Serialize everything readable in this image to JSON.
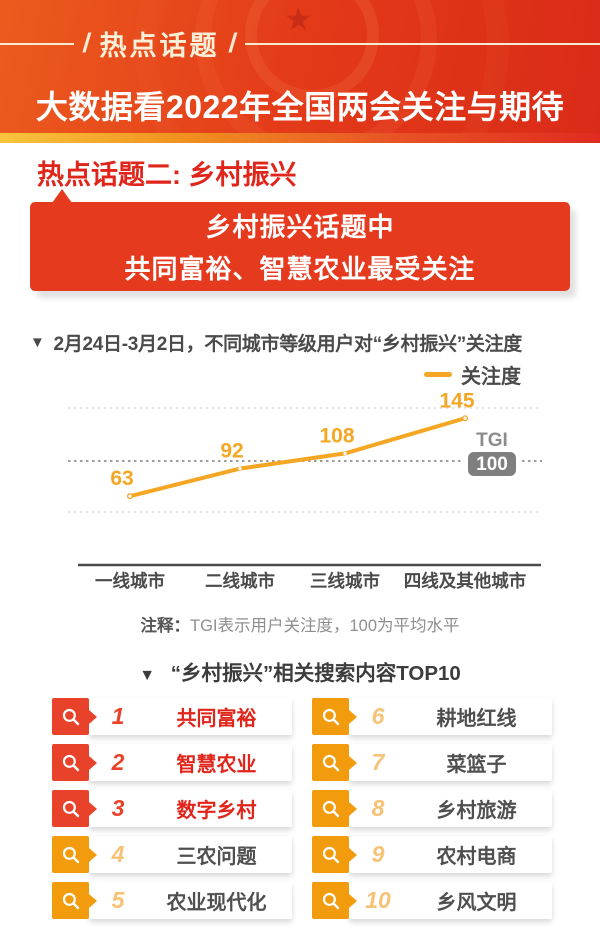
{
  "header": {
    "badge_label": "热点话题",
    "title": "大数据看2022年全国两会关注与期待"
  },
  "section": {
    "title": "热点话题二: 乡村振兴",
    "banner_line1": "乡村振兴话题中",
    "banner_line2": "共同富裕、智慧农业最受关注"
  },
  "chart_section": {
    "caption_marker": "▼",
    "caption": "2月24日-3月2日，不同城市等级用户对“乡村振兴”关注度",
    "legend_label": "关注度",
    "tgi_label": "TGI",
    "tgi_value": "100",
    "note_prefix": "注释：",
    "note_text": "TGI表示用户关注度，100为平均水平"
  },
  "chart_data": {
    "type": "line",
    "title": "2月24日-3月2日，不同城市等级用户对“乡村振兴”关注度",
    "categories": [
      "一线城市",
      "二线城市",
      "三线城市",
      "四线及其他城市"
    ],
    "series": [
      {
        "name": "关注度",
        "values": [
          63,
          92,
          108,
          145
        ]
      }
    ],
    "reference_line": {
      "label": "TGI",
      "value": 100,
      "note": "100为平均水平"
    },
    "ylim": [
      40,
      165
    ],
    "grid": "dotted-horizontal",
    "legend_position": "top-right",
    "line_color": "#F5A623"
  },
  "top10": {
    "header_marker": "▼",
    "header": "“乡村振兴”相关搜索内容TOP10",
    "items": [
      {
        "rank": "1",
        "label": "共同富裕",
        "tier": "red"
      },
      {
        "rank": "2",
        "label": "智慧农业",
        "tier": "red"
      },
      {
        "rank": "3",
        "label": "数字乡村",
        "tier": "red"
      },
      {
        "rank": "4",
        "label": "三农问题",
        "tier": "orange"
      },
      {
        "rank": "5",
        "label": "农业现代化",
        "tier": "orange"
      },
      {
        "rank": "6",
        "label": "耕地红线",
        "tier": "orange"
      },
      {
        "rank": "7",
        "label": "菜篮子",
        "tier": "orange"
      },
      {
        "rank": "8",
        "label": "乡村旅游",
        "tier": "orange"
      },
      {
        "rank": "9",
        "label": "农村电商",
        "tier": "orange"
      },
      {
        "rank": "10",
        "label": "乡风文明",
        "tier": "orange"
      }
    ]
  },
  "colors": {
    "header_red": "#E33A19",
    "stripe_yellow": "#F9C53C",
    "banner_red": "#E63A1F",
    "accent_red": "#E8432A",
    "accent_orange": "#F29B0D",
    "line_orange": "#F5A623",
    "amber_number": "#F6C276",
    "text_dark": "#4A4A4A",
    "text_gray": "#8F8F8F",
    "tgi_badge_gray": "#7F7F7F"
  }
}
